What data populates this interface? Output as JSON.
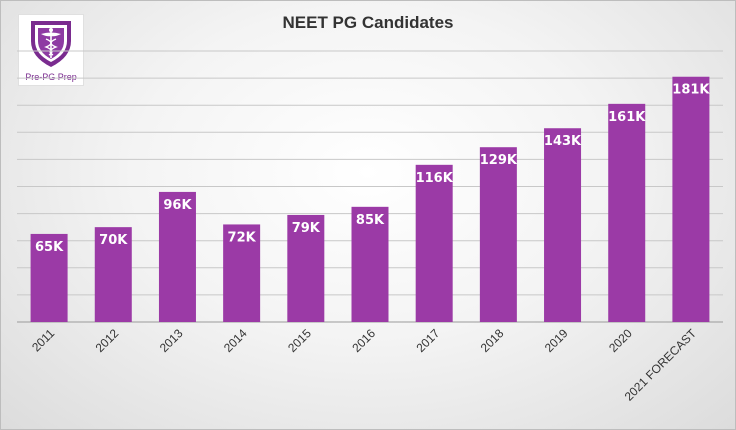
{
  "logo": {
    "text": "Pre-PG Prep"
  },
  "chart_data": {
    "type": "bar",
    "title": "NEET PG Candidates",
    "categories": [
      "2011",
      "2012",
      "2013",
      "2014",
      "2015",
      "2016",
      "2017",
      "2018",
      "2019",
      "2020",
      "2021 FORECAST"
    ],
    "values": [
      65,
      70,
      96,
      72,
      79,
      85,
      116,
      129,
      143,
      161,
      181
    ],
    "data_labels": [
      "65K",
      "70K",
      "96K",
      "72K",
      "79K",
      "85K",
      "116K",
      "129K",
      "143K",
      "161K",
      "181K"
    ],
    "unit": "K",
    "ylim": [
      0,
      200
    ],
    "grid": true,
    "bar_color": "#9b3aa6",
    "xlabel": "",
    "ylabel": ""
  }
}
